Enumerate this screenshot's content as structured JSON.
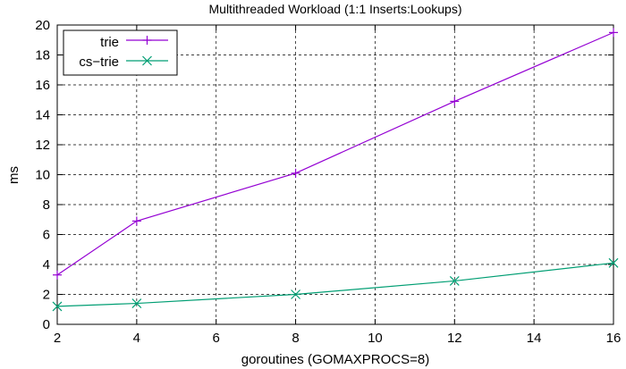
{
  "chart_data": {
    "type": "line",
    "title": "Multithreaded Workload (1:1 Inserts:Lookups)",
    "xlabel": "goroutines (GOMAXPROCS=8)",
    "ylabel": "ms",
    "xlim": [
      2,
      16
    ],
    "ylim": [
      0,
      20
    ],
    "xticks": [
      "2",
      "4",
      "6",
      "8",
      "10",
      "12",
      "14",
      "16"
    ],
    "yticks": [
      "0",
      "2",
      "4",
      "6",
      "8",
      "10",
      "12",
      "14",
      "16",
      "18",
      "20"
    ],
    "grid": true,
    "legend_position": "top-left",
    "series": [
      {
        "name": "trie",
        "color": "#9400d3",
        "marker": "plus",
        "x": [
          2,
          4,
          8,
          12,
          16
        ],
        "y": [
          3.3,
          6.9,
          10.1,
          14.9,
          19.5
        ]
      },
      {
        "name": "cs−trie",
        "color": "#009e73",
        "marker": "x",
        "x": [
          2,
          4,
          8,
          12,
          16
        ],
        "y": [
          1.2,
          1.4,
          2.0,
          2.9,
          4.1
        ]
      }
    ]
  }
}
